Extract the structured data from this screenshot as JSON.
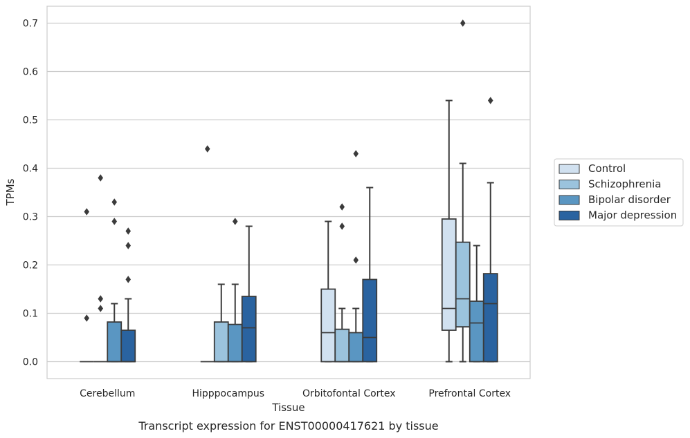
{
  "chart_data": {
    "type": "boxplot",
    "caption": "Transcript expression for ENST00000417621 by tissue",
    "xlabel": "Tissue",
    "ylabel": "TPMs",
    "ylim": [
      -0.035,
      0.735
    ],
    "yticks": [
      0.0,
      0.1,
      0.2,
      0.3,
      0.4,
      0.5,
      0.6,
      0.7
    ],
    "ytick_labels": [
      "0.0",
      "0.1",
      "0.2",
      "0.3",
      "0.4",
      "0.5",
      "0.6",
      "0.7"
    ],
    "grid": "horizontal",
    "legend_position": "right",
    "categories": [
      "Cerebellum",
      "Hipppocampus",
      "Orbitofontal Cortex",
      "Prefrontal Cortex"
    ],
    "series": [
      {
        "name": "Control",
        "color": "#d1e1f0",
        "boxes": [
          {
            "min": 0,
            "q1": 0,
            "median": 0,
            "q3": 0,
            "max": 0,
            "outliers": [
              0.09,
              0.31
            ]
          },
          {
            "min": 0,
            "q1": 0,
            "median": 0,
            "q3": 0,
            "max": 0,
            "outliers": [
              0.44
            ]
          },
          {
            "min": 0,
            "q1": 0,
            "median": 0.06,
            "q3": 0.15,
            "max": 0.29,
            "outliers": []
          },
          {
            "min": 0,
            "q1": 0.065,
            "median": 0.11,
            "q3": 0.295,
            "max": 0.54,
            "outliers": []
          }
        ]
      },
      {
        "name": "Schizophrenia",
        "color": "#9bc3dd",
        "boxes": [
          {
            "min": 0,
            "q1": 0,
            "median": 0,
            "q3": 0,
            "max": 0,
            "outliers": [
              0.11,
              0.13,
              0.38
            ]
          },
          {
            "min": 0,
            "q1": 0,
            "median": 0,
            "q3": 0.082,
            "max": 0.16,
            "outliers": []
          },
          {
            "min": 0,
            "q1": 0,
            "median": 0,
            "q3": 0.067,
            "max": 0.11,
            "outliers": [
              0.28,
              0.32
            ]
          },
          {
            "min": 0,
            "q1": 0.072,
            "median": 0.13,
            "q3": 0.247,
            "max": 0.41,
            "outliers": [
              0.7
            ]
          }
        ]
      },
      {
        "name": "Bipolar disorder",
        "color": "#5a96c2",
        "boxes": [
          {
            "min": 0,
            "q1": 0,
            "median": 0,
            "q3": 0.082,
            "max": 0.12,
            "outliers": [
              0.29,
              0.33
            ]
          },
          {
            "min": 0,
            "q1": 0,
            "median": 0,
            "q3": 0.077,
            "max": 0.16,
            "outliers": [
              0.29
            ]
          },
          {
            "min": 0,
            "q1": 0,
            "median": 0,
            "q3": 0.06,
            "max": 0.11,
            "outliers": [
              0.21,
              0.43
            ]
          },
          {
            "min": 0,
            "q1": 0,
            "median": 0.08,
            "q3": 0.125,
            "max": 0.24,
            "outliers": []
          }
        ]
      },
      {
        "name": "Major depression",
        "color": "#2a63a0",
        "boxes": [
          {
            "min": 0,
            "q1": 0,
            "median": 0,
            "q3": 0.065,
            "max": 0.13,
            "outliers": [
              0.17,
              0.24,
              0.27
            ]
          },
          {
            "min": 0,
            "q1": 0,
            "median": 0.07,
            "q3": 0.135,
            "max": 0.28,
            "outliers": []
          },
          {
            "min": 0,
            "q1": 0,
            "median": 0.05,
            "q3": 0.17,
            "max": 0.36,
            "outliers": []
          },
          {
            "min": 0,
            "q1": 0,
            "median": 0.12,
            "q3": 0.182,
            "max": 0.37,
            "outliers": [
              0.54
            ]
          }
        ]
      }
    ]
  }
}
